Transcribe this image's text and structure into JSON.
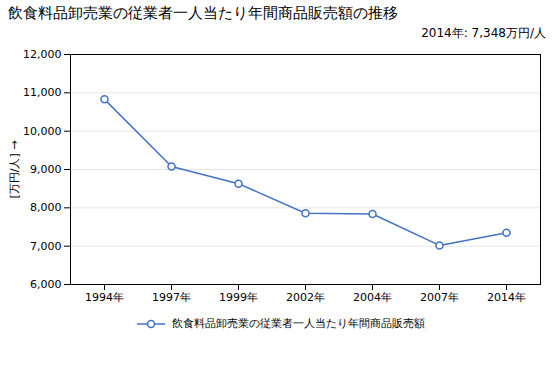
{
  "chart_data": {
    "type": "line",
    "title": "飲食料品卸売業の従業者一人当たり年間商品販売額の推移",
    "ylabel": "[万円/人]",
    "annotation": "2014年: 7,348万円/人",
    "categories": [
      "1994年",
      "1997年",
      "1999年",
      "2002年",
      "2004年",
      "2007年",
      "2014年"
    ],
    "series": [
      {
        "name": "飲食料品卸売業の従業者一人当たり年間商品販売額",
        "color": "#4472C4",
        "marker": "circle",
        "values": [
          10830,
          9080,
          8630,
          7860,
          7840,
          7020,
          7348
        ]
      }
    ],
    "ylim": [
      6000,
      12000
    ],
    "yticks": [
      {
        "value": 6000,
        "label": "6,000"
      },
      {
        "value": 7000,
        "label": "7,000"
      },
      {
        "value": 8000,
        "label": "8,000"
      },
      {
        "value": 9000,
        "label": "9,000"
      },
      {
        "value": 10000,
        "label": "10,000"
      },
      {
        "value": 11000,
        "label": "11,000"
      },
      {
        "value": 12000,
        "label": "12,000"
      }
    ],
    "grid": true,
    "legend": "bottom"
  }
}
